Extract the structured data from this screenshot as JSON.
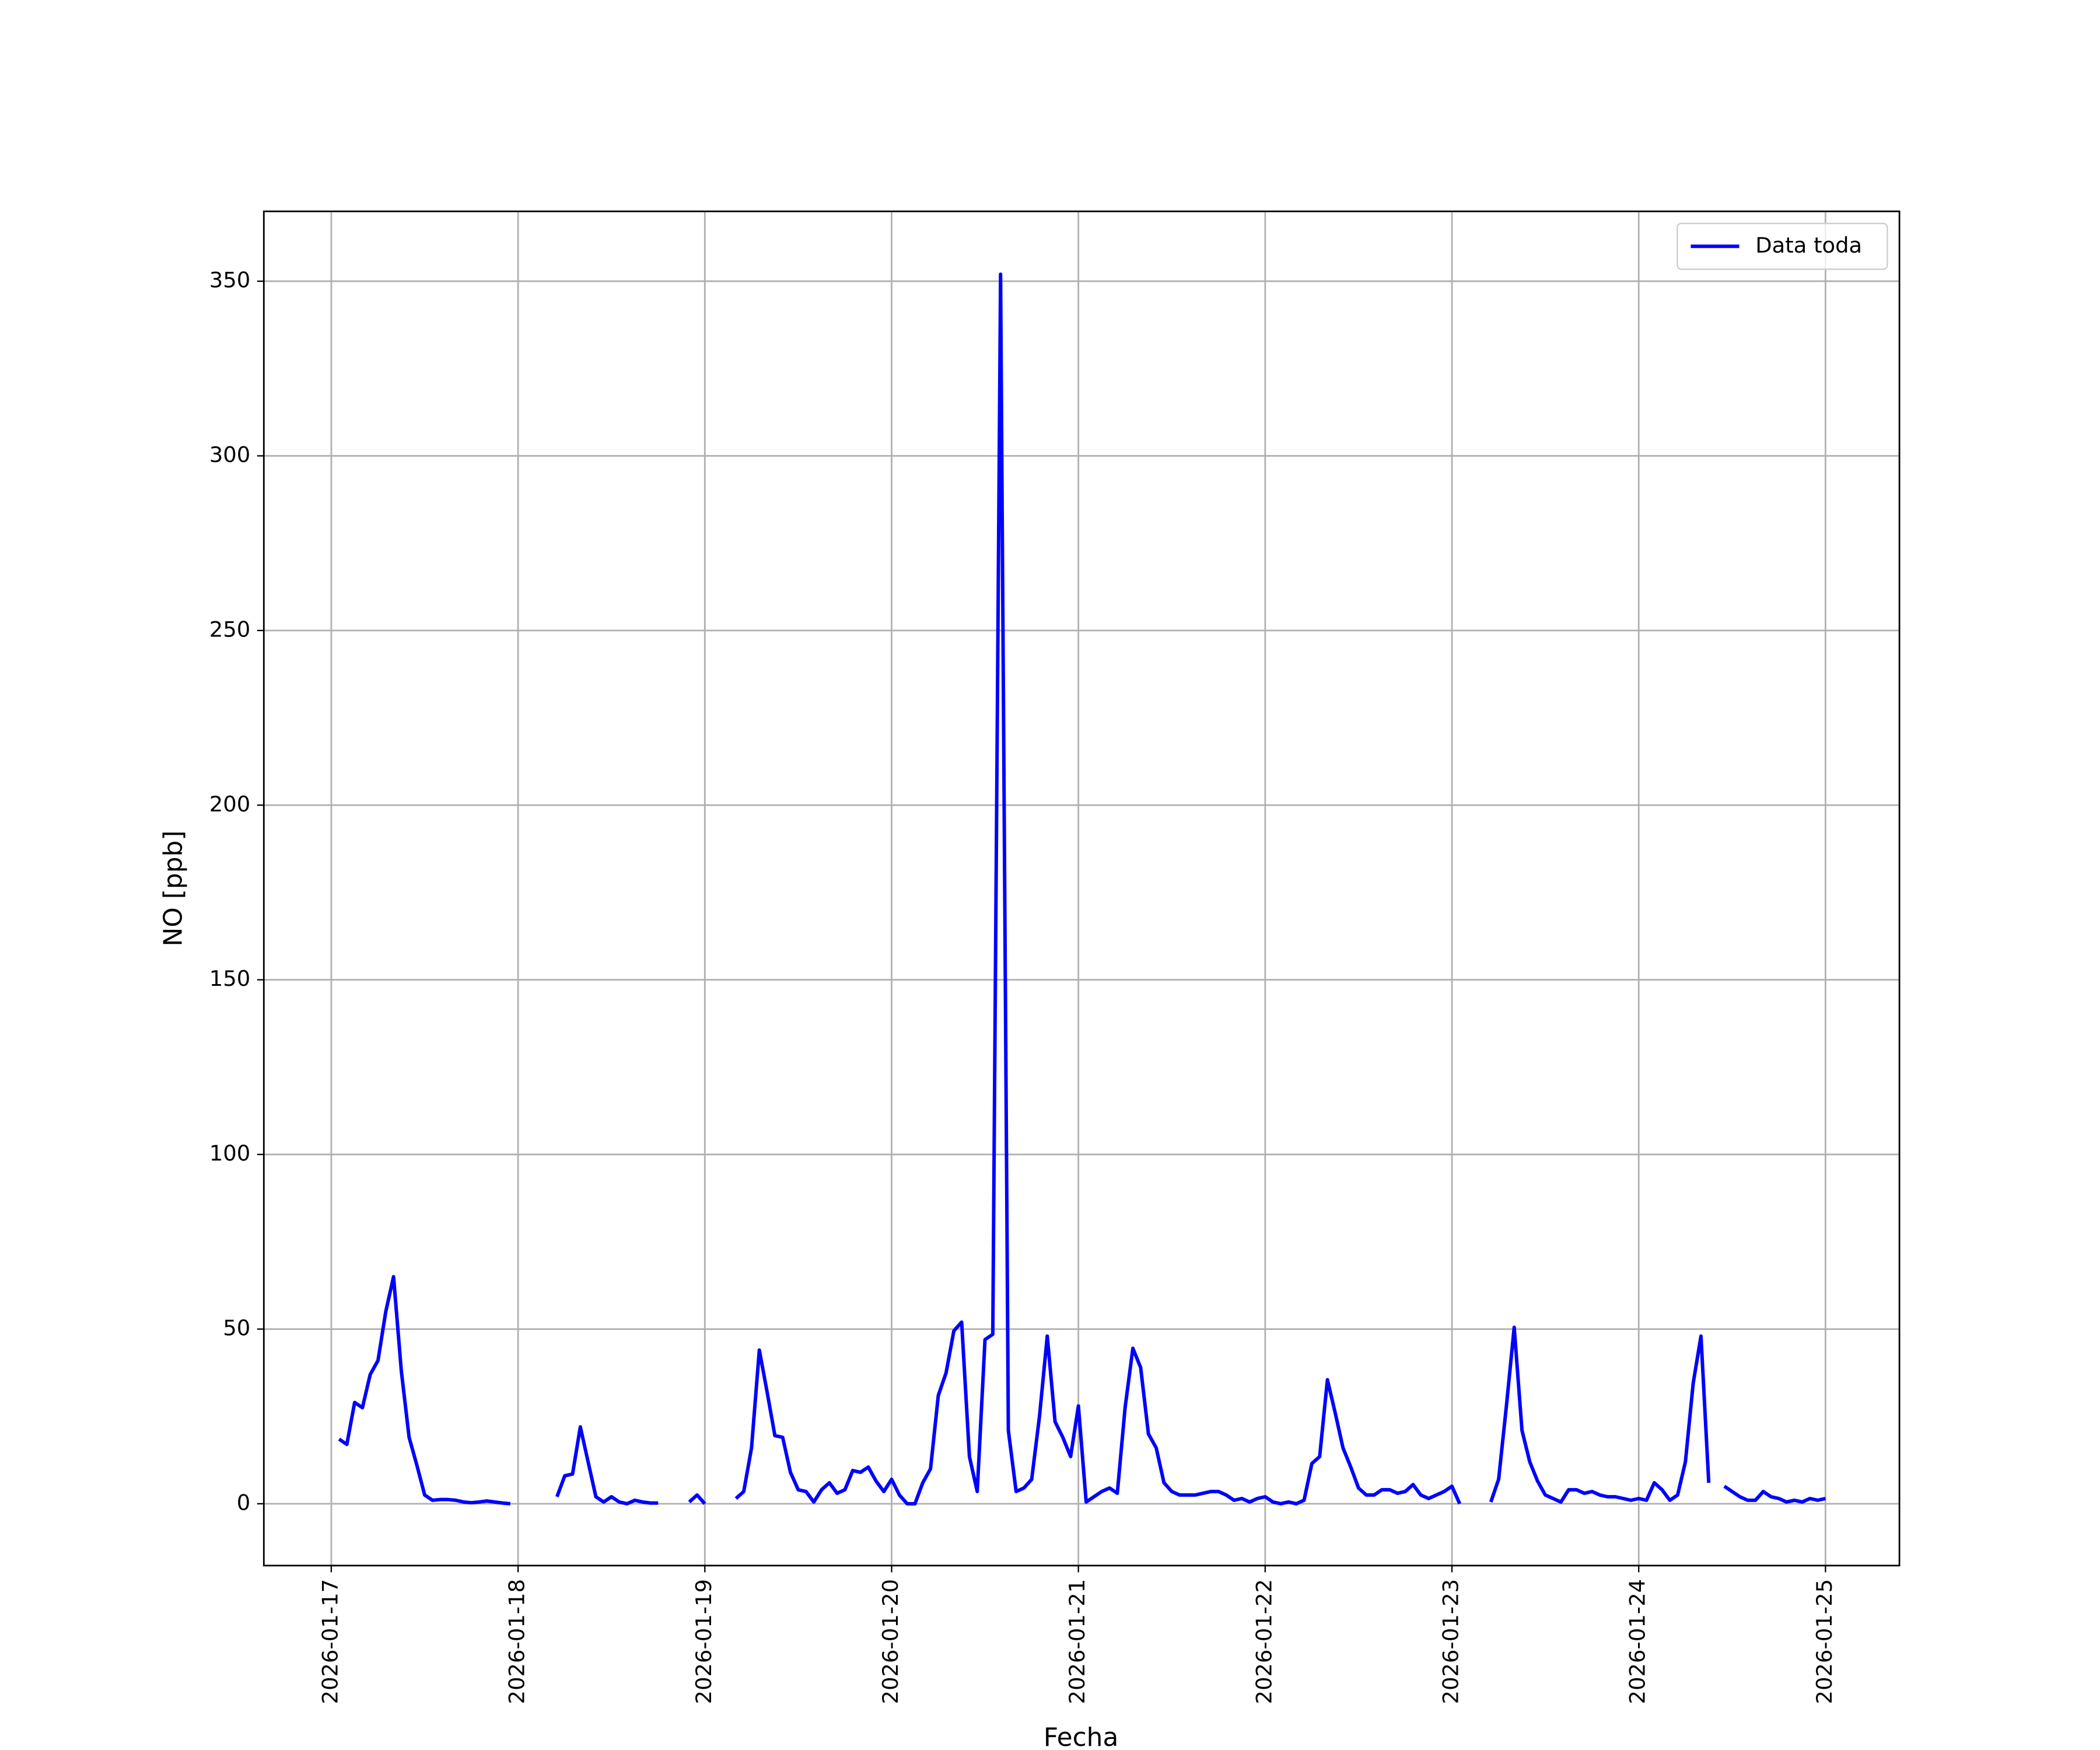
{
  "chart_data": {
    "type": "line",
    "xlabel": "Fecha",
    "ylabel": "NO [ppb]",
    "x": [
      "2026-01-17 01:00",
      "2026-01-17 02:00",
      "2026-01-17 03:00",
      "2026-01-17 04:00",
      "2026-01-17 05:00",
      "2026-01-17 06:00",
      "2026-01-17 07:00",
      "2026-01-17 08:00",
      "2026-01-17 09:00",
      "2026-01-17 10:00",
      "2026-01-17 11:00",
      "2026-01-17 12:00",
      "2026-01-17 13:00",
      "2026-01-17 14:00",
      "2026-01-17 15:00",
      "2026-01-17 16:00",
      "2026-01-17 17:00",
      "2026-01-17 18:00",
      "2026-01-17 19:00",
      "2026-01-17 20:00",
      "2026-01-17 21:00",
      "2026-01-17 22:00",
      "2026-01-17 23:00",
      "2026-01-18 00:00",
      "2026-01-18 05:00",
      "2026-01-18 06:00",
      "2026-01-18 07:00",
      "2026-01-18 08:00",
      "2026-01-18 09:00",
      "2026-01-18 10:00",
      "2026-01-18 11:00",
      "2026-01-18 12:00",
      "2026-01-18 13:00",
      "2026-01-18 14:00",
      "2026-01-18 15:00",
      "2026-01-18 16:00",
      "2026-01-18 17:00",
      "2026-01-18 18:00",
      "2026-01-18 19:00",
      "2026-01-18 22:00",
      "2026-01-18 23:00",
      "2026-01-19 00:00",
      "2026-01-19 01:00",
      "2026-01-19 04:00",
      "2026-01-19 05:00",
      "2026-01-19 06:00",
      "2026-01-19 07:00",
      "2026-01-19 08:00",
      "2026-01-19 09:00",
      "2026-01-19 10:00",
      "2026-01-19 11:00",
      "2026-01-19 12:00",
      "2026-01-19 13:00",
      "2026-01-19 14:00",
      "2026-01-19 15:00",
      "2026-01-19 16:00",
      "2026-01-19 17:00",
      "2026-01-19 18:00",
      "2026-01-19 19:00",
      "2026-01-19 20:00",
      "2026-01-19 21:00",
      "2026-01-19 22:00",
      "2026-01-19 23:00",
      "2026-01-20 00:00",
      "2026-01-20 01:00",
      "2026-01-20 02:00",
      "2026-01-20 03:00",
      "2026-01-20 04:00",
      "2026-01-20 05:00",
      "2026-01-20 06:00",
      "2026-01-20 07:00",
      "2026-01-20 08:00",
      "2026-01-20 09:00",
      "2026-01-20 10:00",
      "2026-01-20 11:00",
      "2026-01-20 12:00",
      "2026-01-20 13:00",
      "2026-01-20 14:00",
      "2026-01-20 15:00",
      "2026-01-20 16:00",
      "2026-01-20 17:00",
      "2026-01-20 18:00",
      "2026-01-20 19:00",
      "2026-01-20 20:00",
      "2026-01-20 21:00",
      "2026-01-20 22:00",
      "2026-01-20 23:00",
      "2026-01-21 00:00",
      "2026-01-21 01:00",
      "2026-01-21 02:00",
      "2026-01-21 03:00",
      "2026-01-21 04:00",
      "2026-01-21 05:00",
      "2026-01-21 06:00",
      "2026-01-21 07:00",
      "2026-01-21 08:00",
      "2026-01-21 09:00",
      "2026-01-21 10:00",
      "2026-01-21 11:00",
      "2026-01-21 12:00",
      "2026-01-21 13:00",
      "2026-01-21 14:00",
      "2026-01-21 15:00",
      "2026-01-21 16:00",
      "2026-01-21 17:00",
      "2026-01-21 18:00",
      "2026-01-21 19:00",
      "2026-01-21 20:00",
      "2026-01-21 21:00",
      "2026-01-21 22:00",
      "2026-01-21 23:00",
      "2026-01-22 00:00",
      "2026-01-22 01:00",
      "2026-01-22 02:00",
      "2026-01-22 03:00",
      "2026-01-22 04:00",
      "2026-01-22 05:00",
      "2026-01-22 06:00",
      "2026-01-22 07:00",
      "2026-01-22 08:00",
      "2026-01-22 09:00",
      "2026-01-22 10:00",
      "2026-01-22 11:00",
      "2026-01-22 12:00",
      "2026-01-22 13:00",
      "2026-01-22 14:00",
      "2026-01-22 15:00",
      "2026-01-22 16:00",
      "2026-01-22 17:00",
      "2026-01-22 18:00",
      "2026-01-22 19:00",
      "2026-01-22 20:00",
      "2026-01-22 21:00",
      "2026-01-22 22:00",
      "2026-01-22 23:00",
      "2026-01-23 00:00",
      "2026-01-23 01:00",
      "2026-01-23 02:00",
      "2026-01-23 05:00",
      "2026-01-23 06:00",
      "2026-01-23 07:00",
      "2026-01-23 08:00",
      "2026-01-23 09:00",
      "2026-01-23 10:00",
      "2026-01-23 11:00",
      "2026-01-23 12:00",
      "2026-01-23 13:00",
      "2026-01-23 14:00",
      "2026-01-23 15:00",
      "2026-01-23 16:00",
      "2026-01-23 17:00",
      "2026-01-23 18:00",
      "2026-01-23 19:00",
      "2026-01-23 20:00",
      "2026-01-23 21:00",
      "2026-01-23 22:00",
      "2026-01-23 23:00",
      "2026-01-24 00:00",
      "2026-01-24 01:00",
      "2026-01-24 02:00",
      "2026-01-24 03:00",
      "2026-01-24 04:00",
      "2026-01-24 05:00",
      "2026-01-24 06:00",
      "2026-01-24 07:00",
      "2026-01-24 08:00",
      "2026-01-24 09:00",
      "2026-01-24 10:00",
      "2026-01-24 11:00",
      "2026-01-24 12:00",
      "2026-01-24 13:00",
      "2026-01-24 14:00",
      "2026-01-24 15:00",
      "2026-01-24 16:00",
      "2026-01-24 17:00",
      "2026-01-24 18:00",
      "2026-01-24 19:00",
      "2026-01-24 20:00",
      "2026-01-24 21:00",
      "2026-01-24 22:00",
      "2026-01-24 23:00",
      "2026-01-25 00:00"
    ],
    "series": [
      {
        "name": "Data toda",
        "color": "#0000ff",
        "values": [
          18.5,
          17,
          29,
          27.5,
          37,
          41,
          55,
          65,
          38,
          19,
          11,
          2.5,
          1,
          1.2,
          1.2,
          1,
          0.5,
          0.3,
          0.5,
          0.8,
          0.5,
          0.2,
          0,
          null,
          2,
          8,
          8.5,
          22,
          12,
          2,
          0.5,
          2,
          0.5,
          0,
          1,
          0.5,
          0.2,
          0.2,
          null,
          0.5,
          2.5,
          0,
          null,
          1.5,
          3.5,
          16,
          44,
          32,
          19.5,
          19,
          9,
          4,
          3.5,
          0.5,
          4,
          6,
          3,
          4,
          9.5,
          9,
          10.5,
          6.5,
          3.5,
          7,
          2.5,
          0,
          0,
          6,
          10,
          31,
          37.5,
          49.5,
          52,
          13.5,
          3.5,
          47,
          48.5,
          352,
          21,
          3.5,
          4.5,
          7,
          25,
          48,
          23.5,
          19,
          13.5,
          28,
          0.5,
          2,
          3.5,
          4.5,
          3,
          27.5,
          44.5,
          39,
          20,
          16,
          6,
          3.5,
          2.5,
          2.5,
          2.5,
          3,
          3.5,
          3.5,
          2.5,
          1,
          1.5,
          0.5,
          1.5,
          2,
          0.5,
          0,
          0.5,
          0,
          1,
          11.5,
          13.5,
          35.5,
          26,
          16,
          10.5,
          4.5,
          2.5,
          2.5,
          4,
          4,
          3,
          3.5,
          5.5,
          2.5,
          1.5,
          2.5,
          3.5,
          5,
          0,
          null,
          0.5,
          7,
          28,
          50.5,
          21,
          12,
          6.5,
          2.5,
          1.5,
          0.5,
          4,
          4,
          3,
          3.5,
          2.5,
          2,
          2,
          1.5,
          1,
          1.5,
          1,
          6,
          4,
          1,
          2.5,
          12,
          34.5,
          48,
          6,
          null,
          5,
          3.5,
          2,
          1,
          1,
          3.5,
          2,
          1.5,
          0.5,
          1,
          0.5,
          1.5,
          1,
          1.5
        ]
      }
    ],
    "xlim": [
      "2026-01-16 15:20",
      "2026-01-25 09:30"
    ],
    "xticks": [
      "2026-01-17",
      "2026-01-18",
      "2026-01-19",
      "2026-01-20",
      "2026-01-21",
      "2026-01-22",
      "2026-01-23",
      "2026-01-24",
      "2026-01-25"
    ],
    "ylim": [
      -17.7,
      370
    ],
    "yticks": [
      0,
      50,
      100,
      150,
      200,
      250,
      300,
      350
    ],
    "grid": true,
    "legend": "upper right"
  }
}
